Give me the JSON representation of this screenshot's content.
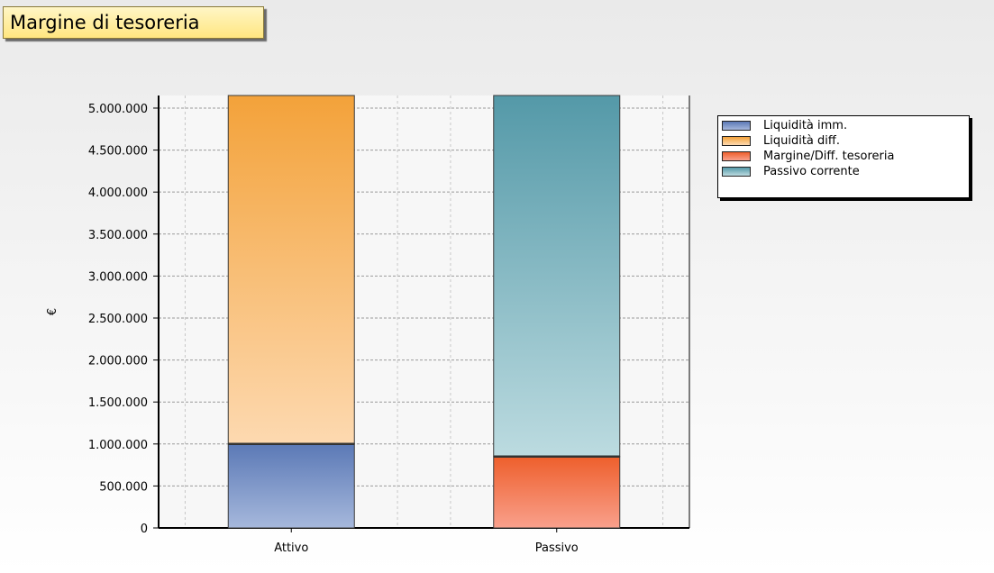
{
  "title": "Margine di tesoreria",
  "chart_data": {
    "type": "bar",
    "stacked": true,
    "categories": [
      "Attivo",
      "Passivo"
    ],
    "series": [
      {
        "name": "Liquidità imm.",
        "values": [
          1000000,
          0
        ],
        "color": "#5b79b6",
        "color_light": "#a6b8dc"
      },
      {
        "name": "Liquidità diff.",
        "values": [
          4150000,
          0
        ],
        "color": "#f3a23a",
        "color_light": "#fdd9b0"
      },
      {
        "name": "Margine/Diff. tesoreria",
        "values": [
          0,
          850000
        ],
        "color": "#ee5f2c",
        "color_light": "#f9a08c"
      },
      {
        "name": "Passivo corrente",
        "values": [
          0,
          4300000
        ],
        "color": "#5499a8",
        "color_light": "#bcdbe0"
      }
    ],
    "ylabel": "€",
    "ylim": [
      0,
      5150000
    ],
    "yticks": [
      0,
      500000,
      1000000,
      1500000,
      2000000,
      2500000,
      3000000,
      3500000,
      4000000,
      4500000,
      5000000
    ],
    "ytick_labels": [
      "0",
      "500.000",
      "1.000.000",
      "1.500.000",
      "2.000.000",
      "2.500.000",
      "3.000.000",
      "3.500.000",
      "4.000.000",
      "4.500.000",
      "5.000.000"
    ],
    "grid": true,
    "legend_position": "top-right"
  }
}
